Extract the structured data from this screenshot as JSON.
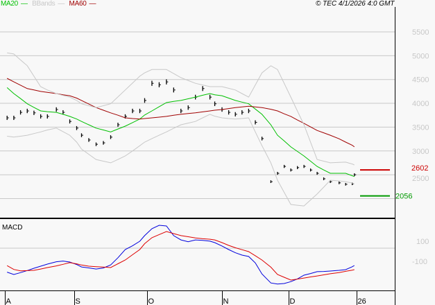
{
  "header": {
    "legend": [
      {
        "label": "MA20",
        "color": "#00c000"
      },
      {
        "label": "BBands",
        "color": "#c8c8c8"
      },
      {
        "label": "MA60",
        "color": "#a00000"
      }
    ],
    "copyright": "© TEC 4/1/2026 4:0 GMT"
  },
  "chart_data": [
    {
      "type": "line",
      "panel": "price",
      "grid": true,
      "ylim": [
        2000,
        5500
      ],
      "y_ticks": [
        "5500",
        "5000",
        "4500",
        "4000",
        "3500",
        "3000",
        "2500"
      ],
      "x_ticks": [
        {
          "label": "A",
          "date": "2025-08-01"
        },
        {
          "label": "S",
          "date": "2025-09-01"
        },
        {
          "label": "O",
          "date": "2025-10-01"
        },
        {
          "label": "N",
          "date": "2025-11-01"
        },
        {
          "label": "D",
          "date": "2025-12-01"
        },
        {
          "label": "26",
          "date": "2026-01-01"
        }
      ],
      "markers": [
        {
          "label": "2602",
          "value": 2602,
          "color": "#cc0000"
        },
        {
          "label": "2056",
          "value": 2056,
          "color": "#009900"
        }
      ],
      "dates": [
        "2025-08-02",
        "2025-08-05",
        "2025-08-08",
        "2025-08-11",
        "2025-08-14",
        "2025-08-17",
        "2025-08-20",
        "2025-08-24",
        "2025-08-27",
        "2025-08-30",
        "2025-09-02",
        "2025-09-04",
        "2025-09-07",
        "2025-09-10",
        "2025-09-13",
        "2025-09-16",
        "2025-09-19",
        "2025-09-22",
        "2025-09-25",
        "2025-09-28",
        "2025-09-30",
        "2025-10-03",
        "2025-10-06",
        "2025-10-09",
        "2025-10-12",
        "2025-10-15",
        "2025-10-18",
        "2025-10-21",
        "2025-10-24",
        "2025-10-27",
        "2025-10-29",
        "2025-11-01",
        "2025-11-04",
        "2025-11-07",
        "2025-11-10",
        "2025-11-13",
        "2025-11-16",
        "2025-11-19",
        "2025-11-23",
        "2025-11-26",
        "2025-11-29",
        "2025-12-02",
        "2025-12-05",
        "2025-12-08",
        "2025-12-11",
        "2025-12-14",
        "2025-12-17",
        "2025-12-20",
        "2025-12-24",
        "2025-12-27",
        "2025-12-30",
        "2025-12-31"
      ],
      "series": [
        {
          "name": "Price",
          "kind": "bars",
          "color": "#000000",
          "values": [
            3695,
            3695,
            3810,
            3840,
            3800,
            3725,
            3725,
            3870,
            3810,
            3620,
            3480,
            3330,
            3230,
            3140,
            3170,
            3290,
            3550,
            3725,
            3840,
            3840,
            4060,
            4420,
            4390,
            4450,
            4280,
            3840,
            3910,
            4130,
            4310,
            4130,
            3990,
            3870,
            3810,
            3770,
            3810,
            3840,
            3600,
            3260,
            2355,
            2530,
            2675,
            2600,
            2650,
            2675,
            2600,
            2530,
            2415,
            2355,
            2330,
            2300,
            2310,
            2500
          ]
        },
        {
          "name": "MA20",
          "color": "#00c000",
          "values": [
            4330,
            4205,
            4100,
            3990,
            3915,
            3840,
            3825,
            3810,
            3770,
            3725,
            3670,
            3620,
            3550,
            3480,
            3440,
            3400,
            3460,
            3520,
            3595,
            3670,
            3755,
            3840,
            3930,
            4015,
            4040,
            4060,
            4095,
            4130,
            4170,
            4205,
            4180,
            4160,
            4110,
            4060,
            4025,
            3990,
            3880,
            3770,
            3550,
            3330,
            3210,
            3085,
            2990,
            2895,
            2785,
            2675,
            2600,
            2530,
            2530,
            2530,
            2480,
            2460
          ]
        },
        {
          "name": "MA60",
          "color": "#a00000",
          "values": [
            4525,
            4450,
            4380,
            4310,
            4280,
            4250,
            4230,
            4205,
            4180,
            4160,
            4110,
            4060,
            3985,
            3910,
            3855,
            3800,
            3750,
            3695,
            3680,
            3670,
            3680,
            3695,
            3710,
            3725,
            3750,
            3770,
            3785,
            3800,
            3820,
            3840,
            3855,
            3870,
            3890,
            3910,
            3925,
            3940,
            3925,
            3910,
            3875,
            3840,
            3780,
            3725,
            3650,
            3580,
            3505,
            3430,
            3380,
            3330,
            3255,
            3185,
            3120,
            3085
          ]
        },
        {
          "name": "BBands",
          "color": "#c8c8c8",
          "values": [
            5060,
            5035,
            4910,
            4790,
            4570,
            4350,
            4280,
            4205,
            4165,
            4130,
            4060,
            3990,
            3950,
            3910,
            3950,
            3990,
            4135,
            4280,
            4425,
            4570,
            4640,
            4710,
            4710,
            4710,
            4625,
            4540,
            4480,
            4420,
            4385,
            4350,
            4350,
            4350,
            4315,
            4280,
            4205,
            4130,
            4385,
            4640,
            4790,
            4710,
            4420,
            4130,
            3840,
            3550,
            3185,
            2820,
            2785,
            2750,
            2760,
            2765,
            2725,
            2705
          ]
        },
        {
          "name": "BBands",
          "color": "#c8c8c8",
          "values": [
            3310,
            3290,
            3310,
            3330,
            3365,
            3400,
            3440,
            3480,
            3405,
            3330,
            3185,
            3040,
            2930,
            2820,
            2785,
            2750,
            2820,
            2895,
            3000,
            3110,
            3185,
            3260,
            3330,
            3400,
            3475,
            3550,
            3585,
            3620,
            3695,
            3770,
            3730,
            3695,
            3680,
            3670,
            3680,
            3695,
            3400,
            3110,
            2750,
            2385,
            2130,
            1875,
            1860,
            1845,
            1970,
            2095,
            2240,
            2385,
            2370,
            2355,
            2325,
            2310
          ]
        }
      ]
    },
    {
      "type": "line",
      "panel": "macd",
      "title": "MACD",
      "y_ticks": [
        "100",
        "-100"
      ],
      "series": [
        {
          "color": "#0000dd",
          "values": [
            -220,
            -246,
            -225,
            -202,
            -177,
            -154,
            -131,
            -105,
            -97,
            -108,
            -135,
            -162,
            -173,
            -185,
            -174,
            -140,
            -60,
            31,
            72,
            123,
            185,
            262,
            300,
            292,
            185,
            138,
            118,
            138,
            133,
            124,
            108,
            70,
            31,
            -5,
            -31,
            -46,
            -118,
            -240,
            -340,
            -352,
            -346,
            -325,
            -295,
            -254,
            -235,
            -215,
            -212,
            -208,
            -200,
            -192,
            -160,
            -146
          ]
        },
        {
          "color": "#dd0000",
          "values": [
            -148,
            -190,
            -206,
            -203,
            -200,
            -185,
            -169,
            -151,
            -133,
            -115,
            -128,
            -141,
            -154,
            -159,
            -164,
            -169,
            -127,
            -85,
            -27,
            31,
            96,
            162,
            197,
            231,
            208,
            185,
            173,
            160,
            151,
            145,
            138,
            108,
            77,
            51,
            29,
            8,
            -38,
            -85,
            -165,
            -246,
            -277,
            -308,
            -297,
            -285,
            -273,
            -262,
            -250,
            -238,
            -225,
            -211,
            -198,
            -192
          ]
        }
      ]
    }
  ]
}
